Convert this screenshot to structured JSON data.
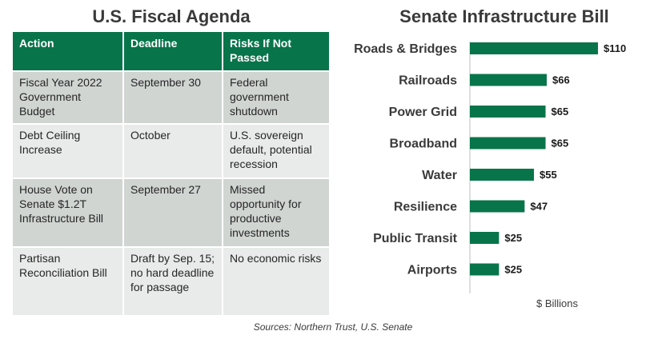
{
  "left_title": "U.S. Fiscal Agenda",
  "table": {
    "headers": [
      "Action",
      "Deadline",
      "Risks If Not Passed"
    ],
    "rows": [
      [
        "Fiscal Year 2022 Government Budget",
        "September 30",
        "Federal government shutdown"
      ],
      [
        "Debt Ceiling Increase",
        "October",
        "U.S. sovereign default, potential recession"
      ],
      [
        "House Vote on Senate $1.2T Infrastructure Bill",
        "September 27",
        "Missed opportunity for productive investments"
      ],
      [
        "Partisan Reconciliation Bill",
        "Draft by Sep. 15; no hard deadline for passage",
        "No economic risks"
      ]
    ]
  },
  "source": "Sources: Northern Trust, U.S. Senate",
  "chart_data": {
    "type": "bar",
    "orientation": "horizontal",
    "title": "Senate Infrastructure Bill",
    "categories": [
      "Roads & Bridges",
      "Railroads",
      "Power Grid",
      "Broadband",
      "Water",
      "Resilience",
      "Public Transit",
      "Airports"
    ],
    "values": [
      110,
      66,
      65,
      65,
      55,
      47,
      25,
      25
    ],
    "value_labels": [
      "$110",
      "$66",
      "$65",
      "$65",
      "$55",
      "$47",
      "$25",
      "$25"
    ],
    "xlabel": "$ Billions",
    "ylabel": "",
    "xlim": [
      0,
      110
    ],
    "grid": false,
    "bar_color": "#08744a"
  }
}
